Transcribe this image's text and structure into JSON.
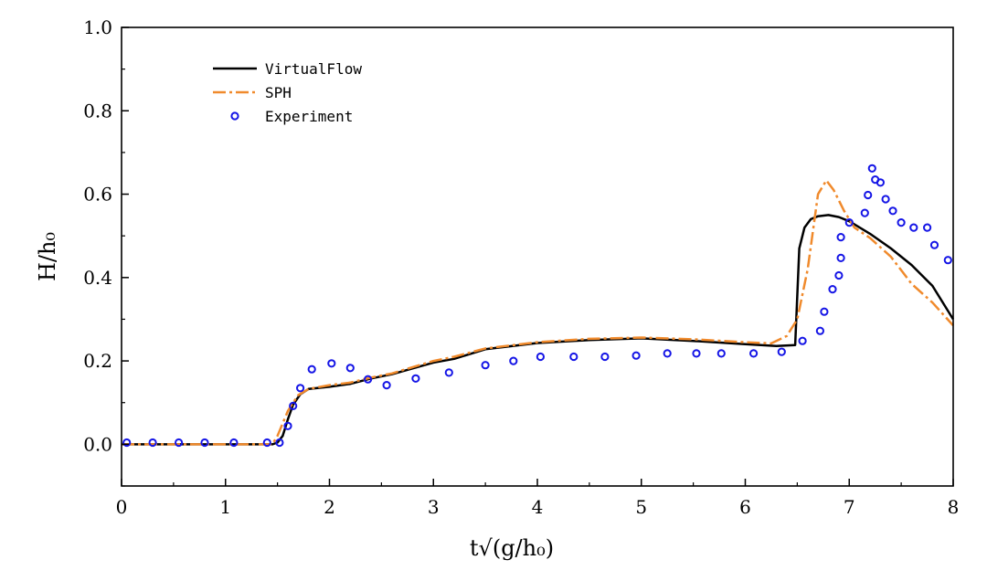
{
  "chart_data": {
    "type": "line",
    "title": "",
    "xlabel": "t√(g/h₀)",
    "ylabel": "H/h₀",
    "xlim": [
      0,
      8
    ],
    "ylim": [
      -0.1,
      1.0
    ],
    "xticks": [
      0,
      1,
      2,
      3,
      4,
      5,
      6,
      7,
      8
    ],
    "yticks": [
      0.0,
      0.2,
      0.4,
      0.6,
      0.8,
      1.0
    ],
    "xtick_labels": [
      "0",
      "1",
      "2",
      "3",
      "4",
      "5",
      "6",
      "7",
      "8"
    ],
    "ytick_labels": [
      "0.0",
      "0.2",
      "0.4",
      "0.6",
      "0.8",
      "1.0"
    ],
    "grid": false,
    "legend_position": "top-left",
    "series": [
      {
        "name": "VirtualFlow",
        "style": "solid",
        "color": "#000000",
        "points": [
          [
            0,
            0
          ],
          [
            1.45,
            0
          ],
          [
            1.5,
            0.004
          ],
          [
            1.55,
            0.02
          ],
          [
            1.6,
            0.06
          ],
          [
            1.65,
            0.095
          ],
          [
            1.72,
            0.12
          ],
          [
            1.8,
            0.133
          ],
          [
            2.0,
            0.138
          ],
          [
            2.2,
            0.145
          ],
          [
            2.4,
            0.158
          ],
          [
            2.6,
            0.168
          ],
          [
            2.8,
            0.182
          ],
          [
            3.0,
            0.196
          ],
          [
            3.2,
            0.205
          ],
          [
            3.5,
            0.228
          ],
          [
            4.0,
            0.243
          ],
          [
            4.5,
            0.25
          ],
          [
            5.0,
            0.254
          ],
          [
            5.5,
            0.248
          ],
          [
            6.0,
            0.24
          ],
          [
            6.3,
            0.236
          ],
          [
            6.48,
            0.238
          ],
          [
            6.52,
            0.47
          ],
          [
            6.57,
            0.52
          ],
          [
            6.63,
            0.54
          ],
          [
            6.7,
            0.547
          ],
          [
            6.8,
            0.55
          ],
          [
            6.9,
            0.545
          ],
          [
            7.0,
            0.535
          ],
          [
            7.2,
            0.505
          ],
          [
            7.4,
            0.47
          ],
          [
            7.6,
            0.43
          ],
          [
            7.8,
            0.38
          ],
          [
            8.0,
            0.3
          ]
        ]
      },
      {
        "name": "SPH",
        "style": "dashdot",
        "color": "#f08a2c",
        "points": [
          [
            0,
            0
          ],
          [
            1.45,
            0
          ],
          [
            1.5,
            0.02
          ],
          [
            1.55,
            0.05
          ],
          [
            1.6,
            0.08
          ],
          [
            1.65,
            0.1
          ],
          [
            1.7,
            0.118
          ],
          [
            1.8,
            0.133
          ],
          [
            2.0,
            0.142
          ],
          [
            2.2,
            0.148
          ],
          [
            2.4,
            0.16
          ],
          [
            2.6,
            0.17
          ],
          [
            2.8,
            0.185
          ],
          [
            3.0,
            0.2
          ],
          [
            3.2,
            0.21
          ],
          [
            3.5,
            0.23
          ],
          [
            4.0,
            0.245
          ],
          [
            4.5,
            0.253
          ],
          [
            5.0,
            0.256
          ],
          [
            5.5,
            0.252
          ],
          [
            6.0,
            0.245
          ],
          [
            6.25,
            0.242
          ],
          [
            6.4,
            0.26
          ],
          [
            6.5,
            0.3
          ],
          [
            6.6,
            0.42
          ],
          [
            6.7,
            0.6
          ],
          [
            6.78,
            0.633
          ],
          [
            6.85,
            0.61
          ],
          [
            6.95,
            0.56
          ],
          [
            7.05,
            0.52
          ],
          [
            7.2,
            0.495
          ],
          [
            7.4,
            0.45
          ],
          [
            7.6,
            0.385
          ],
          [
            7.8,
            0.34
          ],
          [
            8.0,
            0.285
          ]
        ]
      }
    ],
    "experiment": {
      "name": "Experiment",
      "style": "open-circle",
      "color": "#1515e6",
      "points": [
        [
          0.05,
          0.004
        ],
        [
          0.3,
          0.004
        ],
        [
          0.55,
          0.004
        ],
        [
          0.8,
          0.004
        ],
        [
          1.08,
          0.004
        ],
        [
          1.4,
          0.004
        ],
        [
          1.52,
          0.004
        ],
        [
          1.6,
          0.044
        ],
        [
          1.65,
          0.092
        ],
        [
          1.72,
          0.135
        ],
        [
          1.83,
          0.18
        ],
        [
          2.02,
          0.194
        ],
        [
          2.2,
          0.183
        ],
        [
          2.37,
          0.156
        ],
        [
          2.55,
          0.142
        ],
        [
          2.83,
          0.158
        ],
        [
          3.15,
          0.172
        ],
        [
          3.5,
          0.19
        ],
        [
          3.77,
          0.2
        ],
        [
          4.03,
          0.21
        ],
        [
          4.35,
          0.21
        ],
        [
          4.65,
          0.21
        ],
        [
          4.95,
          0.213
        ],
        [
          5.25,
          0.218
        ],
        [
          5.53,
          0.218
        ],
        [
          5.77,
          0.218
        ],
        [
          6.08,
          0.218
        ],
        [
          6.35,
          0.222
        ],
        [
          6.55,
          0.248
        ],
        [
          6.72,
          0.272
        ],
        [
          6.76,
          0.318
        ],
        [
          6.84,
          0.372
        ],
        [
          6.9,
          0.405
        ],
        [
          6.92,
          0.447
        ],
        [
          6.92,
          0.497
        ],
        [
          7.0,
          0.532
        ],
        [
          7.15,
          0.555
        ],
        [
          7.18,
          0.598
        ],
        [
          7.22,
          0.662
        ],
        [
          7.25,
          0.635
        ],
        [
          7.3,
          0.628
        ],
        [
          7.35,
          0.588
        ],
        [
          7.42,
          0.56
        ],
        [
          7.5,
          0.532
        ],
        [
          7.62,
          0.52
        ],
        [
          7.75,
          0.52
        ],
        [
          7.82,
          0.478
        ],
        [
          7.95,
          0.442
        ]
      ]
    }
  }
}
